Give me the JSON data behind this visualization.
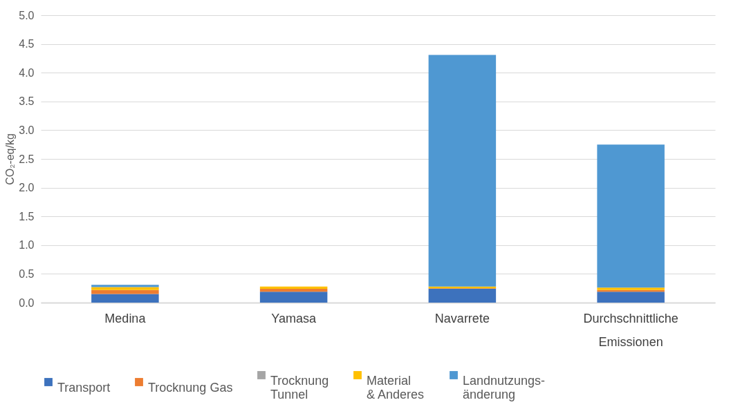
{
  "chart_data": {
    "type": "bar",
    "stacked": true,
    "ylabel": "CO₂-eq/kg",
    "categories": [
      "Medina",
      "Yamasa",
      "Navarrete",
      "Durchschnittliche Emissionen"
    ],
    "series": [
      {
        "name": "Transport",
        "color": "#3d72bd",
        "values": [
          0.15,
          0.19,
          0.24,
          0.19
        ]
      },
      {
        "name": "Trocknung Gas",
        "color": "#ed7d31",
        "values": [
          0.07,
          0.05,
          0.01,
          0.03
        ]
      },
      {
        "name": "Trocknung Tunnel",
        "color": "#a5a5a5",
        "values": [
          null,
          null,
          0,
          null
        ]
      },
      {
        "name": "Material & Anderes",
        "color": "#ffc000",
        "values": [
          0.05,
          0.04,
          0.03,
          0.04
        ]
      },
      {
        "name": "Landnutzungs-änderung",
        "color": "#4f98d2",
        "values": [
          0.04,
          0,
          4.03,
          2.49
        ]
      }
    ],
    "ylim": [
      0,
      5
    ],
    "yticks": [
      {
        "value": 0,
        "label": "0.0"
      },
      {
        "value": 0.5,
        "label": "0.5"
      },
      {
        "value": 1,
        "label": "1.0"
      },
      {
        "value": 1.5,
        "label": "1.5"
      },
      {
        "value": 2,
        "label": "2.0"
      },
      {
        "value": 2.5,
        "label": "2.5"
      },
      {
        "value": 3,
        "label": "3.0"
      },
      {
        "value": 3.5,
        "label": "3.5"
      },
      {
        "value": 4,
        "label": "4.0"
      },
      {
        "value": 4.5,
        "label": "4.5"
      },
      {
        "value": 5,
        "label": "5.0"
      }
    ],
    "grid": "y",
    "legend": "bottom"
  }
}
